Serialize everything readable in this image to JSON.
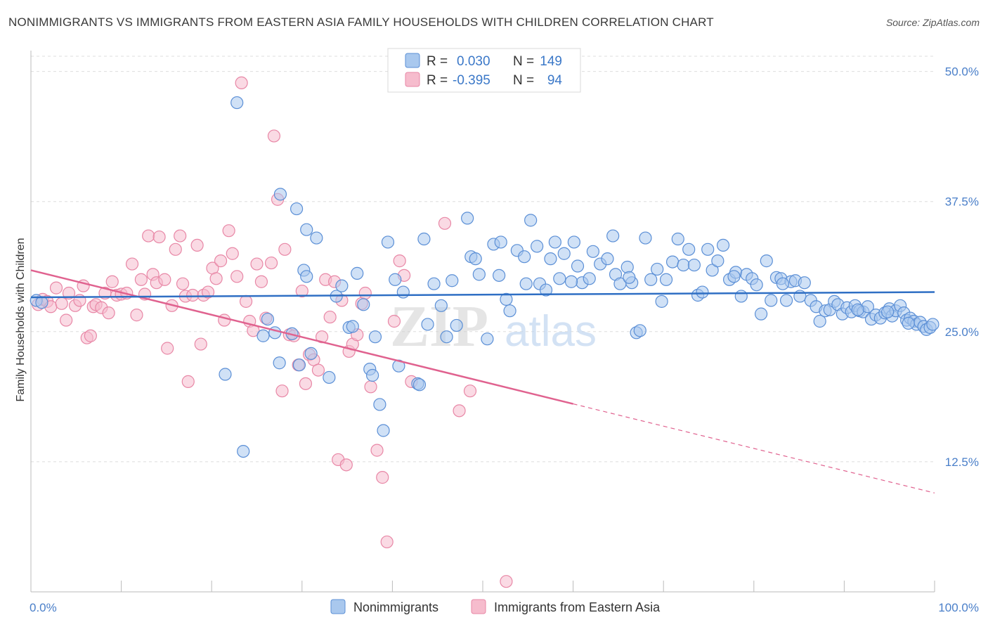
{
  "title": "NONIMMIGRANTS VS IMMIGRANTS FROM EASTERN ASIA FAMILY HOUSEHOLDS WITH CHILDREN CORRELATION CHART",
  "source": "Source: ZipAtlas.com",
  "watermark": {
    "zip": "ZIP",
    "atlas": "atlas"
  },
  "colors": {
    "blue_fill": "#a9c8ee",
    "blue_stroke": "#5b8fd6",
    "blue_line": "#2f6fc4",
    "pink_fill": "#f6bccd",
    "pink_stroke": "#e887a6",
    "pink_line": "#e0628f",
    "grid": "#dddddd",
    "axis_text": "#4a7fc9"
  },
  "legend": {
    "rows": [
      {
        "r_label": "R =",
        "r_value": "0.030",
        "n_label": "N =",
        "n_value": "149"
      },
      {
        "r_label": "R =",
        "r_value": "-0.395",
        "n_label": "N =",
        "n_value": "94"
      }
    ]
  },
  "chart_data": {
    "type": "scatter",
    "title": "NONIMMIGRANTS VS IMMIGRANTS FROM EASTERN ASIA FAMILY HOUSEHOLDS WITH CHILDREN CORRELATION CHART",
    "xlabel": "",
    "ylabel": "Family Households with Children",
    "xlim": [
      0,
      100
    ],
    "ylim": [
      0,
      52
    ],
    "x_tick_labels": [
      "0.0%",
      "100.0%"
    ],
    "y_ticks": [
      12.5,
      25.0,
      37.5,
      50.0
    ],
    "y_tick_labels": [
      "12.5%",
      "25.0%",
      "37.5%",
      "50.0%"
    ],
    "grid": "horizontal dashed",
    "legend_position": "top-center",
    "series": [
      {
        "name": "Nonimmigrants",
        "trend": {
          "x0": 0,
          "y0": 28.3,
          "x1": 100,
          "y1": 28.8,
          "solid_until": 100
        },
        "points": [
          [
            0.6,
            28.0
          ],
          [
            1.2,
            27.8
          ],
          [
            22.8,
            47.0
          ],
          [
            27.6,
            38.2
          ],
          [
            29.4,
            36.8
          ],
          [
            30.5,
            34.8
          ],
          [
            31.6,
            34.0
          ],
          [
            23.5,
            13.5
          ],
          [
            21.5,
            20.9
          ],
          [
            25.7,
            24.6
          ],
          [
            26.2,
            26.2
          ],
          [
            27.0,
            24.9
          ],
          [
            27.5,
            22.0
          ],
          [
            28.9,
            24.8
          ],
          [
            29.7,
            21.8
          ],
          [
            30.2,
            30.9
          ],
          [
            30.5,
            30.3
          ],
          [
            31.0,
            22.9
          ],
          [
            33.0,
            20.6
          ],
          [
            33.8,
            28.4
          ],
          [
            34.4,
            29.4
          ],
          [
            35.2,
            25.4
          ],
          [
            35.6,
            25.5
          ],
          [
            36.1,
            30.6
          ],
          [
            36.8,
            27.6
          ],
          [
            37.5,
            21.4
          ],
          [
            37.8,
            20.8
          ],
          [
            38.1,
            24.5
          ],
          [
            38.6,
            18.0
          ],
          [
            39.0,
            15.5
          ],
          [
            39.5,
            33.6
          ],
          [
            40.3,
            30.0
          ],
          [
            40.7,
            21.7
          ],
          [
            41.2,
            28.8
          ],
          [
            42.8,
            20.0
          ],
          [
            43.0,
            19.9
          ],
          [
            43.5,
            33.9
          ],
          [
            43.9,
            25.7
          ],
          [
            44.6,
            29.6
          ],
          [
            45.4,
            27.5
          ],
          [
            46.0,
            24.5
          ],
          [
            46.6,
            29.9
          ],
          [
            47.1,
            25.6
          ],
          [
            48.3,
            35.9
          ],
          [
            48.7,
            32.2
          ],
          [
            49.2,
            32.0
          ],
          [
            49.6,
            30.5
          ],
          [
            50.5,
            24.3
          ],
          [
            51.2,
            33.4
          ],
          [
            51.8,
            30.4
          ],
          [
            52.0,
            33.6
          ],
          [
            52.6,
            28.1
          ],
          [
            53.0,
            27.0
          ],
          [
            53.8,
            32.8
          ],
          [
            54.6,
            32.2
          ],
          [
            55.3,
            35.7
          ],
          [
            56.0,
            33.2
          ],
          [
            56.3,
            29.6
          ],
          [
            57.0,
            29.0
          ],
          [
            57.5,
            32.0
          ],
          [
            58.0,
            33.6
          ],
          [
            58.5,
            30.1
          ],
          [
            59.0,
            32.5
          ],
          [
            60.1,
            33.6
          ],
          [
            60.5,
            31.3
          ],
          [
            61.0,
            29.7
          ],
          [
            61.8,
            30.1
          ],
          [
            62.2,
            32.7
          ],
          [
            63.0,
            31.5
          ],
          [
            63.8,
            32.0
          ],
          [
            64.4,
            34.2
          ],
          [
            64.7,
            30.5
          ],
          [
            65.2,
            29.6
          ],
          [
            66.0,
            31.2
          ],
          [
            66.5,
            29.7
          ],
          [
            67.0,
            24.9
          ],
          [
            67.4,
            25.1
          ],
          [
            68.0,
            34.0
          ],
          [
            68.6,
            30.0
          ],
          [
            69.3,
            31.0
          ],
          [
            69.8,
            27.9
          ],
          [
            70.3,
            30.0
          ],
          [
            71.0,
            31.7
          ],
          [
            71.6,
            33.9
          ],
          [
            72.2,
            31.4
          ],
          [
            72.8,
            32.9
          ],
          [
            73.4,
            31.4
          ],
          [
            73.8,
            28.5
          ],
          [
            74.3,
            28.8
          ],
          [
            74.9,
            32.9
          ],
          [
            75.4,
            30.9
          ],
          [
            76.0,
            31.8
          ],
          [
            76.6,
            33.3
          ],
          [
            77.3,
            30.0
          ],
          [
            78.0,
            30.7
          ],
          [
            78.6,
            28.4
          ],
          [
            79.2,
            30.5
          ],
          [
            79.8,
            30.1
          ],
          [
            80.3,
            29.5
          ],
          [
            80.8,
            26.7
          ],
          [
            81.4,
            31.8
          ],
          [
            81.9,
            28.0
          ],
          [
            82.5,
            30.2
          ],
          [
            83.0,
            30.1
          ],
          [
            83.6,
            28.0
          ],
          [
            84.1,
            29.8
          ],
          [
            84.6,
            29.9
          ],
          [
            85.1,
            28.4
          ],
          [
            85.6,
            29.7
          ],
          [
            86.3,
            28.0
          ],
          [
            86.9,
            27.4
          ],
          [
            87.3,
            26.0
          ],
          [
            87.9,
            27.0
          ],
          [
            88.4,
            27.1
          ],
          [
            88.9,
            27.9
          ],
          [
            89.3,
            27.6
          ],
          [
            89.8,
            26.7
          ],
          [
            90.3,
            27.3
          ],
          [
            90.8,
            26.9
          ],
          [
            91.2,
            27.5
          ],
          [
            91.7,
            27.0
          ],
          [
            92.1,
            26.9
          ],
          [
            92.6,
            27.4
          ],
          [
            93.0,
            26.2
          ],
          [
            93.5,
            26.6
          ],
          [
            94.0,
            26.3
          ],
          [
            94.5,
            26.8
          ],
          [
            95.0,
            27.2
          ],
          [
            95.3,
            26.5
          ],
          [
            95.7,
            27.0
          ],
          [
            96.2,
            27.5
          ],
          [
            96.6,
            26.8
          ],
          [
            96.9,
            26.1
          ],
          [
            97.3,
            26.3
          ],
          [
            97.7,
            26.0
          ],
          [
            98.0,
            25.7
          ],
          [
            98.4,
            25.9
          ],
          [
            98.8,
            25.5
          ],
          [
            99.1,
            25.2
          ],
          [
            99.5,
            25.4
          ],
          [
            99.8,
            25.7
          ],
          [
            77.8,
            30.3
          ],
          [
            66.2,
            30.2
          ],
          [
            54.8,
            29.6
          ],
          [
            59.8,
            29.8
          ],
          [
            83.2,
            29.6
          ],
          [
            91.5,
            27.1
          ],
          [
            94.8,
            26.9
          ],
          [
            97.1,
            25.8
          ]
        ]
      },
      {
        "name": "Immigrants from Eastern Asia",
        "trend": {
          "x0": 0,
          "y0": 30.9,
          "x1": 100,
          "y1": 9.5,
          "solid_until": 60
        },
        "points": [
          [
            0.8,
            27.6
          ],
          [
            1.3,
            28.1
          ],
          [
            1.8,
            27.9
          ],
          [
            2.2,
            27.4
          ],
          [
            2.8,
            29.2
          ],
          [
            3.4,
            27.7
          ],
          [
            3.9,
            26.1
          ],
          [
            4.2,
            28.7
          ],
          [
            4.9,
            27.5
          ],
          [
            5.4,
            28.0
          ],
          [
            5.8,
            29.4
          ],
          [
            6.2,
            24.4
          ],
          [
            6.6,
            24.6
          ],
          [
            6.9,
            27.4
          ],
          [
            7.2,
            27.6
          ],
          [
            7.8,
            27.3
          ],
          [
            8.2,
            28.7
          ],
          [
            8.6,
            26.8
          ],
          [
            9.0,
            29.8
          ],
          [
            9.5,
            28.5
          ],
          [
            10.0,
            28.6
          ],
          [
            10.6,
            28.7
          ],
          [
            11.2,
            31.5
          ],
          [
            11.7,
            26.6
          ],
          [
            12.2,
            30.0
          ],
          [
            12.6,
            28.6
          ],
          [
            13.0,
            34.2
          ],
          [
            13.5,
            30.5
          ],
          [
            13.9,
            29.7
          ],
          [
            14.2,
            34.1
          ],
          [
            14.8,
            30.0
          ],
          [
            15.1,
            23.4
          ],
          [
            15.6,
            27.5
          ],
          [
            16.0,
            32.9
          ],
          [
            16.5,
            34.2
          ],
          [
            16.8,
            29.6
          ],
          [
            17.1,
            28.4
          ],
          [
            17.4,
            20.2
          ],
          [
            17.9,
            28.5
          ],
          [
            18.4,
            33.3
          ],
          [
            18.8,
            23.8
          ],
          [
            19.1,
            28.5
          ],
          [
            19.6,
            28.8
          ],
          [
            20.1,
            31.1
          ],
          [
            20.5,
            30.1
          ],
          [
            21.0,
            31.8
          ],
          [
            21.4,
            26.1
          ],
          [
            21.9,
            34.7
          ],
          [
            22.3,
            32.5
          ],
          [
            22.8,
            30.3
          ],
          [
            23.3,
            48.9
          ],
          [
            23.8,
            27.9
          ],
          [
            24.2,
            26.0
          ],
          [
            24.6,
            25.1
          ],
          [
            25.0,
            31.5
          ],
          [
            25.5,
            29.8
          ],
          [
            26.0,
            26.3
          ],
          [
            26.6,
            31.6
          ],
          [
            26.9,
            43.8
          ],
          [
            27.3,
            37.7
          ],
          [
            27.8,
            19.3
          ],
          [
            28.1,
            32.9
          ],
          [
            28.6,
            24.7
          ],
          [
            29.1,
            24.6
          ],
          [
            29.6,
            21.8
          ],
          [
            30.0,
            28.9
          ],
          [
            30.4,
            20.0
          ],
          [
            30.8,
            22.8
          ],
          [
            31.3,
            22.3
          ],
          [
            31.8,
            21.3
          ],
          [
            32.2,
            24.5
          ],
          [
            32.6,
            30.0
          ],
          [
            33.1,
            26.4
          ],
          [
            33.6,
            29.8
          ],
          [
            34.0,
            12.7
          ],
          [
            34.4,
            28.0
          ],
          [
            34.9,
            12.2
          ],
          [
            35.2,
            23.1
          ],
          [
            35.6,
            23.8
          ],
          [
            36.1,
            24.7
          ],
          [
            36.6,
            27.7
          ],
          [
            37.0,
            28.7
          ],
          [
            37.6,
            19.7
          ],
          [
            38.3,
            13.6
          ],
          [
            38.9,
            11.0
          ],
          [
            39.4,
            4.8
          ],
          [
            40.2,
            26.0
          ],
          [
            40.8,
            31.8
          ],
          [
            41.3,
            30.4
          ],
          [
            42.1,
            20.2
          ],
          [
            45.8,
            35.4
          ],
          [
            47.4,
            17.4
          ],
          [
            48.6,
            19.3
          ],
          [
            52.6,
            1.0
          ]
        ]
      }
    ]
  }
}
